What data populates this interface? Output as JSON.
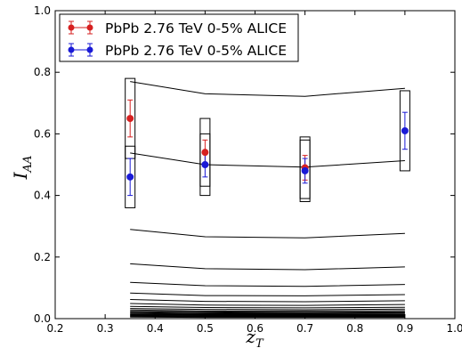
{
  "chart_data": {
    "type": "scatter",
    "title": "",
    "xlabel": "z_T",
    "ylabel": "I_AA",
    "xlim": [
      0.2,
      1.0
    ],
    "ylim": [
      0.0,
      1.0
    ],
    "xticks": [
      "0.2",
      "0.3",
      "0.4",
      "0.5",
      "0.6",
      "0.7",
      "0.8",
      "0.9",
      "1.0"
    ],
    "yticks": [
      "0.0",
      "0.2",
      "0.4",
      "0.6",
      "0.8",
      "1.0"
    ],
    "grid": false,
    "legend_position": "top-left",
    "legend": [
      "PbPb 2.76 TeV 0-5% ALICE",
      "PbPb 2.76 TeV 0-5% ALICE"
    ],
    "series": [
      {
        "name": "PbPb 2.76 TeV 0-5% ALICE",
        "color": "#d62020",
        "points": [
          {
            "x": 0.35,
            "y": 0.65,
            "err": 0.06,
            "sys": [
              0.52,
              0.78
            ]
          },
          {
            "x": 0.5,
            "y": 0.54,
            "err": 0.04,
            "sys": [
              0.43,
              0.65
            ]
          },
          {
            "x": 0.7,
            "y": 0.49,
            "err": 0.04,
            "sys": [
              0.39,
              0.59
            ]
          }
        ]
      },
      {
        "name": "PbPb 2.76 TeV 0-5% ALICE",
        "color": "#1a1ad6",
        "points": [
          {
            "x": 0.35,
            "y": 0.46,
            "err": 0.06,
            "sys": [
              0.36,
              0.56
            ]
          },
          {
            "x": 0.5,
            "y": 0.5,
            "err": 0.04,
            "sys": [
              0.4,
              0.6
            ]
          },
          {
            "x": 0.7,
            "y": 0.48,
            "err": 0.04,
            "sys": [
              0.38,
              0.58
            ]
          },
          {
            "x": 0.9,
            "y": 0.61,
            "err": 0.06,
            "sys": [
              0.48,
              0.74
            ]
          }
        ]
      }
    ],
    "model_curves": {
      "color": "#000000",
      "x": [
        0.35,
        0.5,
        0.7,
        0.9
      ],
      "lines": [
        [
          0.77,
          0.73,
          0.722,
          0.748
        ],
        [
          0.538,
          0.5,
          0.492,
          0.513
        ],
        [
          0.29,
          0.266,
          0.262,
          0.277
        ],
        [
          0.178,
          0.162,
          0.159,
          0.168
        ],
        [
          0.118,
          0.107,
          0.105,
          0.111
        ],
        [
          0.083,
          0.075,
          0.074,
          0.078
        ],
        [
          0.062,
          0.056,
          0.055,
          0.058
        ],
        [
          0.049,
          0.044,
          0.043,
          0.046
        ],
        [
          0.04,
          0.036,
          0.035,
          0.037
        ],
        [
          0.033,
          0.03,
          0.029,
          0.031
        ],
        [
          0.028,
          0.025,
          0.025,
          0.026
        ],
        [
          0.024,
          0.022,
          0.021,
          0.022
        ],
        [
          0.021,
          0.019,
          0.018,
          0.019
        ],
        [
          0.018,
          0.016,
          0.016,
          0.017
        ],
        [
          0.015,
          0.014,
          0.014,
          0.014
        ],
        [
          0.013,
          0.012,
          0.012,
          0.012
        ],
        [
          0.011,
          0.01,
          0.01,
          0.01
        ],
        [
          0.009,
          0.008,
          0.008,
          0.008
        ],
        [
          0.007,
          0.006,
          0.006,
          0.006
        ],
        [
          0.005,
          0.004,
          0.004,
          0.004
        ]
      ]
    }
  }
}
